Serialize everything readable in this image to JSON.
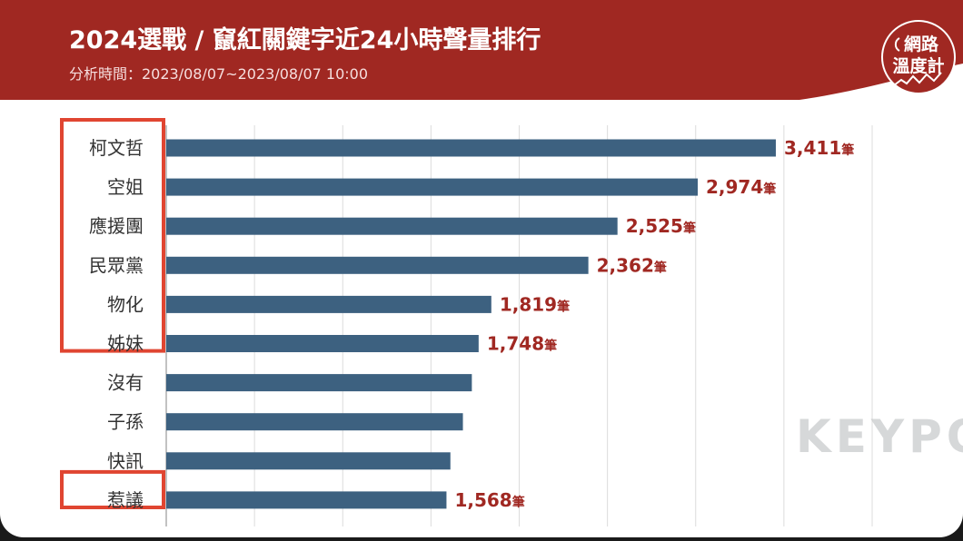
{
  "header": {
    "title": "2024選戰 / 竄紅關鍵字近24小時聲量排行",
    "subtitle": "分析時間：2023/08/07~2023/08/07 10:00",
    "logo_line1": "網路",
    "logo_line2": "溫度計",
    "watermark": "KEYPO"
  },
  "colors": {
    "header_red": "#a02822",
    "bar": "#3d6180",
    "value_label": "#a02822",
    "highlight_box": "#e04531",
    "grid": "#dcdcdc"
  },
  "chart_data": {
    "type": "bar",
    "orientation": "horizontal",
    "categories": [
      "柯文哲",
      "空姐",
      "應援團",
      "民眾黨",
      "物化",
      "姊妹",
      "沒有",
      "子孫",
      "快訊",
      "惹議"
    ],
    "values": [
      3411,
      2974,
      2525,
      2362,
      1819,
      1748,
      1710,
      1660,
      1590,
      1568
    ],
    "value_labels": [
      "3,411",
      "2,974",
      "2,525",
      "2,362",
      "1,819",
      "1,748",
      "",
      "",
      "",
      "1,568"
    ],
    "value_unit": "筆",
    "highlighted_groups": [
      [
        0,
        5
      ],
      [
        9,
        9
      ]
    ],
    "xlim": [
      0,
      3950
    ],
    "grid": true,
    "legend": "none"
  }
}
